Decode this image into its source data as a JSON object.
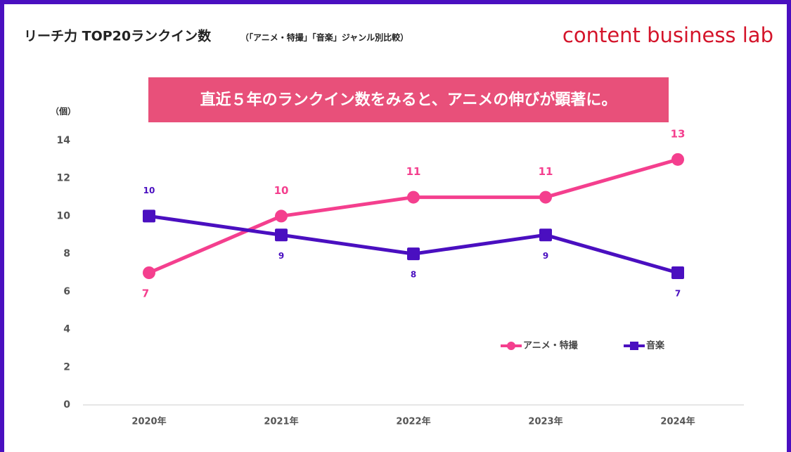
{
  "logo": "content business lab",
  "chart_data": {
    "type": "line",
    "title": "リーチ力 TOP20ランクイン数",
    "subtitle": "（「アニメ・特撮」「音楽」ジャンル別比較）",
    "annotation": "直近５年のランクイン数をみると、アニメの伸びが顕著に。",
    "ylabel": "（個）",
    "categories": [
      "2020年",
      "2021年",
      "2022年",
      "2023年",
      "2024年"
    ],
    "series": [
      {
        "name": "アニメ・特撮",
        "color": "#f43f8e",
        "values": [
          7,
          10,
          11,
          11,
          13
        ]
      },
      {
        "name": "音楽",
        "color": "#4a0fc0",
        "values": [
          10,
          9,
          8,
          9,
          7
        ]
      }
    ],
    "ylim": [
      0,
      14
    ],
    "yticks": [
      0,
      2,
      4,
      6,
      8,
      10,
      12,
      14
    ],
    "grid": false,
    "legend": "right"
  }
}
